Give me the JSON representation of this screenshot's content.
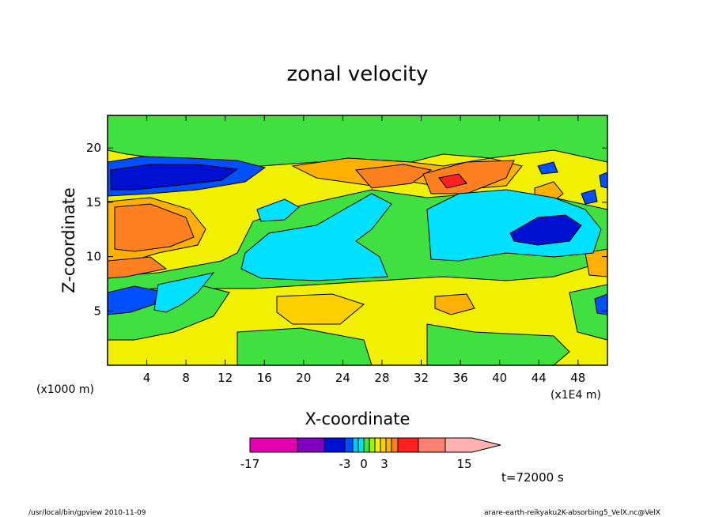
{
  "chart_data": {
    "type": "heatmap",
    "title": "zonal velocity",
    "xlabel": "X-coordinate",
    "ylabel": "Z-coordinate",
    "x_unit": "(x1E4 m)",
    "y_unit": "(x1000 m)",
    "x_ticks": [
      "4",
      "8",
      "12",
      "16",
      "20",
      "24",
      "28",
      "32",
      "36",
      "40",
      "44",
      "48"
    ],
    "y_ticks": [
      "5",
      "10",
      "15",
      "20"
    ],
    "xlim": [
      0,
      51
    ],
    "ylim": [
      0,
      23
    ],
    "colorbar": {
      "ticks": [
        "-17",
        "-3",
        "0",
        "3",
        "15"
      ],
      "colors": [
        "#e000b0",
        "#8000c0",
        "#0010d0",
        "#0050ff",
        "#00c8ff",
        "#00e0e0",
        "#40e040",
        "#a0f000",
        "#f0f000",
        "#ffd000",
        "#ffb000",
        "#ff8020",
        "#ff2020",
        "#ff8070",
        "#ffb0b0"
      ]
    },
    "regions": [
      {
        "label": "upper-left negative jet",
        "x": [
          0,
          13
        ],
        "z": [
          15.5,
          18.5
        ],
        "level": "dark-blue"
      },
      {
        "label": "mid-left positive band",
        "x": [
          0,
          10
        ],
        "z": [
          11,
          15
        ],
        "level": "orange"
      },
      {
        "label": "lower-left negative core",
        "x": [
          0,
          7
        ],
        "z": [
          4.5,
          7
        ],
        "level": "blue"
      },
      {
        "label": "central negative region",
        "x": [
          15,
          30
        ],
        "z": [
          8,
          15
        ],
        "level": "cyan"
      },
      {
        "label": "right negative region",
        "x": [
          33,
          51
        ],
        "z": [
          9,
          16
        ],
        "level": "cyan"
      },
      {
        "label": "right negative core",
        "x": [
          41,
          49
        ],
        "z": [
          11,
          14
        ],
        "level": "dark-blue"
      },
      {
        "label": "upper positive ridge",
        "x": [
          20,
          42
        ],
        "z": [
          15.5,
          19
        ],
        "level": "orange"
      }
    ]
  },
  "footer": {
    "time": "t=72000 s",
    "left_note": "/usr/local/bin/gpview  2010-11-09",
    "right_note": "arare-earth-reikyaku2K-absorbing5_VelX.nc@VelX"
  }
}
